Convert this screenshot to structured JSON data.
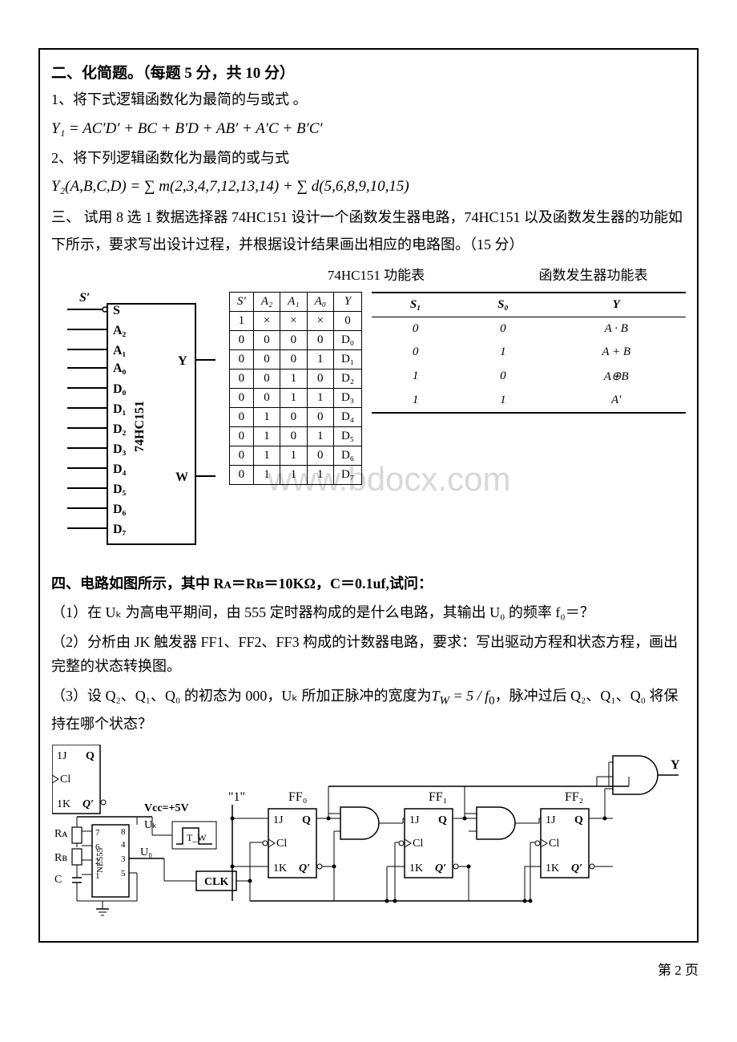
{
  "page_number_label": "第 2 页",
  "watermark_text": "www.bdocx.com",
  "colors": {
    "text": "#000000",
    "border": "#000000",
    "watermark": "#d8d8d8",
    "background": "#ffffff"
  },
  "section2": {
    "heading": "二、化简题。（每题 5 分，共 10 分）",
    "q1_text": "1、将下式逻辑函数化为最简的与或式 。",
    "q1_formula": "Y₁ = AC′D′ + BC + B′D + AB′ + A′C + B′C′",
    "q2_text": "2、将下列逻辑函数化为最简的或与式",
    "q2_formula": "Y₂(A,B,C,D) = ∑ m(2,3,4,7,12,13,14) + ∑ d(5,6,8,9,10,15)"
  },
  "section3": {
    "heading_text": "三、 试用 8 选 1 数据选择器 74HC151 设计一个函数发生器电路，74HC151 以及函数发生器的功能如下所示，要求写出设计过程，并根据设计结果画出相应的电路图。（15 分）",
    "mux_caption": "74HC151 功能表",
    "func_caption": "函数发生器功能表",
    "chip_label": "74HC151",
    "chip_pins_left": [
      "S",
      "A₂",
      "A₁",
      "A₀",
      "D₀",
      "D₁",
      "D₂",
      "D₃",
      "D₄",
      "D₅",
      "D₆",
      "D₇"
    ],
    "chip_pins_right": [
      "Y",
      "W"
    ],
    "chip_s_prime": "S′",
    "mux_table": {
      "headers": [
        "S′",
        "A₂",
        "A₁",
        "A₀",
        "Y"
      ],
      "rows": [
        [
          "1",
          "×",
          "×",
          "×",
          "0"
        ],
        [
          "0",
          "0",
          "0",
          "0",
          "D₀"
        ],
        [
          "0",
          "0",
          "0",
          "1",
          "D₁"
        ],
        [
          "0",
          "0",
          "1",
          "0",
          "D₂"
        ],
        [
          "0",
          "0",
          "1",
          "1",
          "D₃"
        ],
        [
          "0",
          "1",
          "0",
          "0",
          "D₄"
        ],
        [
          "0",
          "1",
          "0",
          "1",
          "D₅"
        ],
        [
          "0",
          "1",
          "1",
          "0",
          "D₆"
        ],
        [
          "0",
          "1",
          "1",
          "1",
          "D₇"
        ]
      ]
    },
    "func_table": {
      "headers": [
        "S₁",
        "S₀",
        "Y"
      ],
      "rows": [
        [
          "0",
          "0",
          "A · B"
        ],
        [
          "0",
          "1",
          "A + B"
        ],
        [
          "1",
          "0",
          "A⊕B"
        ],
        [
          "1",
          "1",
          "A′"
        ]
      ]
    }
  },
  "section4": {
    "heading": "四、电路如图所示，其中 Rᴀ＝Rʙ＝10KΩ，C＝0.1uf,试问：",
    "q1": "（1）在 Uₖ 为高电平期间，由 555 定时器构成的是什么电路，其输出 U₀ 的频率 f₀＝？",
    "q2": "（2）分析由 JK 触发器 FF1、FF2、FF3 构成的计数器电路，要求：写出驱动方程和状态方程，画出完整的状态转换图。",
    "q3": "（3）设 Q₂、Q₁、Q₀ 的初态为 000，Uₖ 所加正脉冲的宽度为 T_W = 5 / f₀，脉冲过后 Q₂、Q₁、Q₀ 将保持在哪个状态？",
    "circuit_labels": {
      "vcc": "Vcc=+5V",
      "uk": "Uₖ",
      "u0": "U₀",
      "tw": "T_W",
      "ff0": "FF₀",
      "ff1": "FF₁",
      "ff2": "FF₂",
      "ra": "Rᴀ",
      "rb": "Rʙ",
      "c": "C",
      "one": "\"1\"",
      "clk": "CLK",
      "chip555": "NE555",
      "pin_j": "1J",
      "pin_k": "1K",
      "pin_cl": "Cl",
      "pin_q": "Q",
      "pin_qn": "Q′",
      "y": "Y"
    }
  }
}
